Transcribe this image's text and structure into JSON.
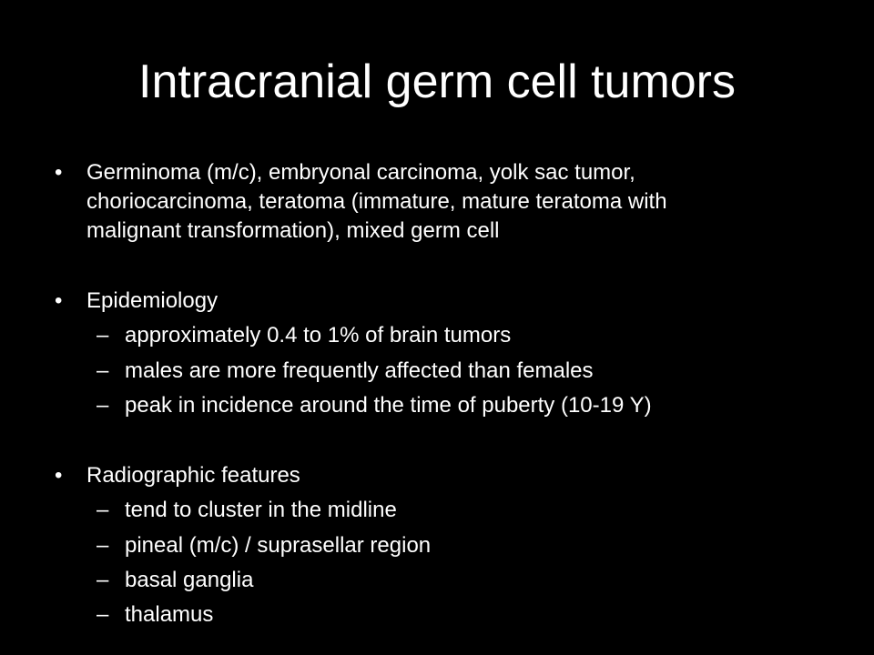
{
  "slide": {
    "title": "Intracranial germ cell tumors",
    "bullet_char": "•",
    "dash_char": "–",
    "sections": [
      {
        "lines": [
          "Germinoma (m/c), embryonal carcinoma, yolk sac tumor,",
          "choriocarcinoma, teratoma (immature, mature teratoma with",
          "malignant transformation), mixed germ cell"
        ]
      },
      {
        "heading": "Epidemiology",
        "items": [
          "approximately 0.4 to 1% of brain tumors",
          "males are more frequently affected than females",
          "peak in incidence around the time of puberty (10-19 Y)"
        ]
      },
      {
        "heading": "Radiographic features",
        "items": [
          "tend to cluster in the midline",
          "pineal (m/c) / suprasellar region",
          "basal ganglia",
          "thalamus"
        ]
      }
    ]
  }
}
